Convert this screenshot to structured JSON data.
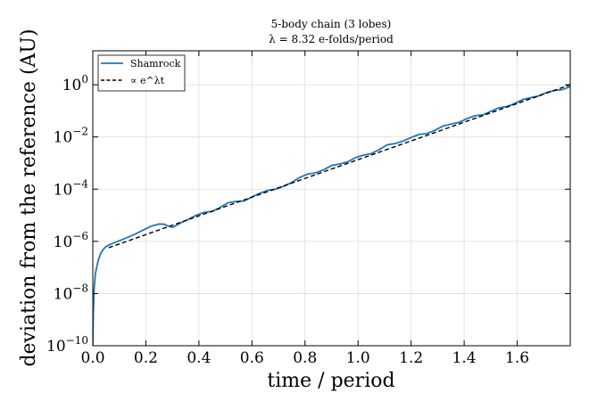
{
  "chart_data": {
    "type": "line",
    "title": "5-body chain (3 lobes)",
    "subtitle": "λ = 8.32 e-folds/period",
    "xlabel": "time / period",
    "ylabel": "deviation from the reference (AU)",
    "xlim": [
      0.0,
      1.8
    ],
    "ylim": [
      1e-10,
      20
    ],
    "yscale": "log",
    "x_ticks": [
      "0.0",
      "0.2",
      "0.4",
      "0.6",
      "0.8",
      "1.0",
      "1.2",
      "1.4",
      "1.6"
    ],
    "y_ticks": [
      {
        "base": "10",
        "exp": "0"
      },
      {
        "base": "10",
        "exp": "−2"
      },
      {
        "base": "10",
        "exp": "−4"
      },
      {
        "base": "10",
        "exp": "−6"
      },
      {
        "base": "10",
        "exp": "−8"
      },
      {
        "base": "10",
        "exp": "−10"
      }
    ],
    "grid": true,
    "legend_position": "top-left",
    "series": [
      {
        "name": "Shamrock",
        "color": "#1f77b4",
        "style": "solid",
        "x": [
          0.0,
          0.002,
          0.005,
          0.01,
          0.02,
          0.03,
          0.04,
          0.05,
          0.07,
          0.1,
          0.13,
          0.16,
          0.19,
          0.22,
          0.25,
          0.27,
          0.28,
          0.3,
          0.33,
          0.36,
          0.39,
          0.42,
          0.45,
          0.48,
          0.51,
          0.54,
          0.57,
          0.6,
          0.63,
          0.66,
          0.69,
          0.72,
          0.75,
          0.78,
          0.81,
          0.84,
          0.87,
          0.9,
          0.93,
          0.96,
          0.99,
          1.02,
          1.05,
          1.08,
          1.11,
          1.14,
          1.17,
          1.2,
          1.23,
          1.26,
          1.29,
          1.32,
          1.35,
          1.38,
          1.41,
          1.44,
          1.47,
          1.5,
          1.53,
          1.56,
          1.59,
          1.62,
          1.65,
          1.68,
          1.71,
          1.74,
          1.77,
          1.8
        ],
        "y": [
          1e-10,
          2e-09,
          1.5e-08,
          6e-08,
          1.8e-07,
          3.5e-07,
          5e-07,
          6.3e-07,
          8e-07,
          1.05e-06,
          1.4e-06,
          1.9e-06,
          2.7e-06,
          3.8e-06,
          4.6e-06,
          4.5e-06,
          4e-06,
          3.4e-06,
          5e-06,
          7e-06,
          1e-05,
          1.3e-05,
          1.4e-05,
          2e-05,
          3e-05,
          3.4e-05,
          3.5e-05,
          5e-05,
          7e-05,
          9e-05,
          0.0001,
          0.00013,
          0.00018,
          0.00028,
          0.00038,
          0.00042,
          0.00055,
          0.0008,
          0.00092,
          0.0011,
          0.0016,
          0.002,
          0.0023,
          0.0033,
          0.005,
          0.0056,
          0.007,
          0.0095,
          0.0125,
          0.0135,
          0.018,
          0.026,
          0.031,
          0.036,
          0.05,
          0.065,
          0.07,
          0.095,
          0.13,
          0.145,
          0.19,
          0.27,
          0.32,
          0.37,
          0.5,
          0.6,
          0.65,
          0.85
        ]
      },
      {
        "name": "∝ e^λt",
        "color": "#000000",
        "style": "dashed",
        "x": [
          0.06,
          1.8
        ],
        "y": [
          5.7e-07,
          1.0
        ]
      }
    ]
  }
}
